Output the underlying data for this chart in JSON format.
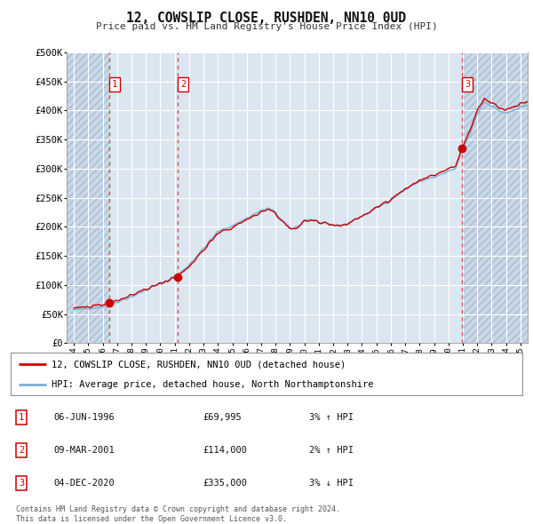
{
  "title": "12, COWSLIP CLOSE, RUSHDEN, NN10 0UD",
  "subtitle": "Price paid vs. HM Land Registry's House Price Index (HPI)",
  "background_color": "#ffffff",
  "plot_bg_color": "#dce6f1",
  "hatch_color": "#b8c8dc",
  "grid_color": "#ffffff",
  "xlim": [
    1993.5,
    2025.5
  ],
  "ylim": [
    0,
    500000
  ],
  "yticks": [
    0,
    50000,
    100000,
    150000,
    200000,
    250000,
    300000,
    350000,
    400000,
    450000,
    500000
  ],
  "x_ticks": [
    1994,
    1995,
    1996,
    1997,
    1998,
    1999,
    2000,
    2001,
    2002,
    2003,
    2004,
    2005,
    2006,
    2007,
    2008,
    2009,
    2010,
    2011,
    2012,
    2013,
    2014,
    2015,
    2016,
    2017,
    2018,
    2019,
    2020,
    2021,
    2022,
    2023,
    2024,
    2025
  ],
  "hpi_line_color": "#7bafd4",
  "price_line_color": "#cc0000",
  "sale_marker_color": "#cc0000",
  "dashed_line_color": "#ee4444",
  "sale_points": [
    {
      "year": 1996.43,
      "value": 69995,
      "label": "1"
    },
    {
      "year": 2001.18,
      "value": 114000,
      "label": "2"
    },
    {
      "year": 2020.92,
      "value": 335000,
      "label": "3"
    }
  ],
  "legend_entries": [
    "12, COWSLIP CLOSE, RUSHDEN, NN10 0UD (detached house)",
    "HPI: Average price, detached house, North Northamptonshire"
  ],
  "table_rows": [
    {
      "num": "1",
      "date": "06-JUN-1996",
      "price": "£69,995",
      "hpi": "3% ↑ HPI"
    },
    {
      "num": "2",
      "date": "09-MAR-2001",
      "price": "£114,000",
      "hpi": "2% ↑ HPI"
    },
    {
      "num": "3",
      "date": "04-DEC-2020",
      "price": "£335,000",
      "hpi": "3% ↓ HPI"
    }
  ],
  "footer": "Contains HM Land Registry data © Crown copyright and database right 2024.\nThis data is licensed under the Open Government Licence v3.0."
}
